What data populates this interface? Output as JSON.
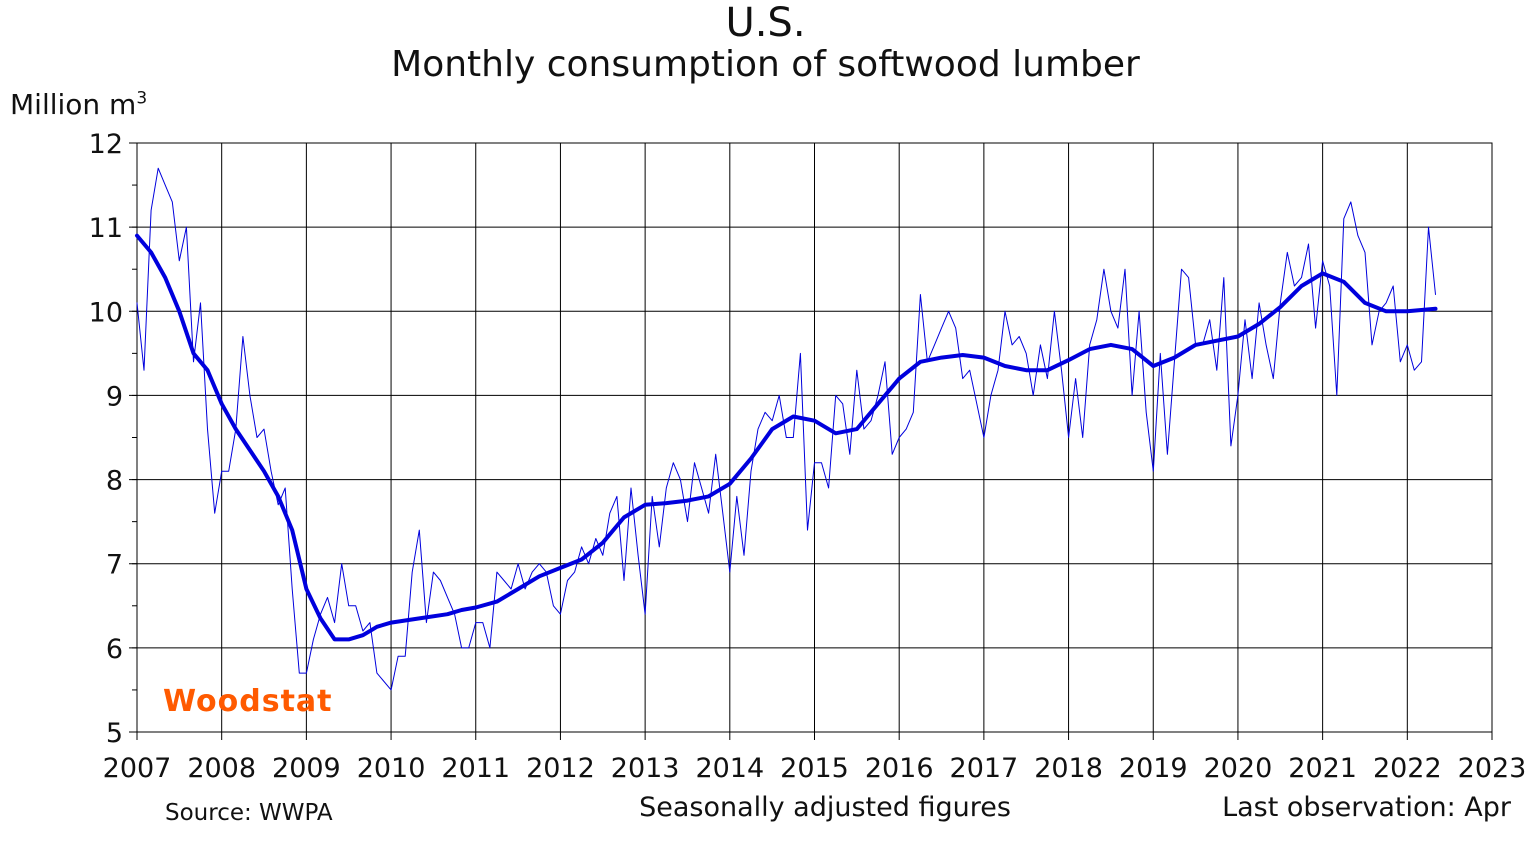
{
  "header": {
    "title": "U.S.",
    "subtitle": "Monthly consumption of softwood lumber",
    "ylabel_main": "Million m",
    "ylabel_sup": "3"
  },
  "footer": {
    "source": "Source: WWPA",
    "note": "Seasonally adjusted figures",
    "last_observation": "Last observation: Apr"
  },
  "logo": {
    "text": "Woodstat",
    "color": "#ff5a00"
  },
  "colors": {
    "series": "#0000dd",
    "grid": "#000000"
  },
  "chart_data": {
    "type": "line",
    "title": "U.S.",
    "subtitle": "Monthly consumption of softwood lumber",
    "ylabel": "Million m3",
    "xlim": [
      2007,
      2023
    ],
    "ylim": [
      5,
      12
    ],
    "grid": true,
    "x_ticks": [
      "2007",
      "2008",
      "2009",
      "2010",
      "2011",
      "2012",
      "2013",
      "2014",
      "2015",
      "2016",
      "2017",
      "2018",
      "2019",
      "2020",
      "2021",
      "2022",
      "2023"
    ],
    "y_ticks": [
      "5",
      "6",
      "7",
      "8",
      "9",
      "10",
      "11",
      "12"
    ],
    "series": [
      {
        "style": "thin",
        "points": [
          [
            2007.0,
            10.1
          ],
          [
            2007.083,
            9.3
          ],
          [
            2007.167,
            11.2
          ],
          [
            2007.25,
            11.7
          ],
          [
            2007.333,
            11.5
          ],
          [
            2007.417,
            11.3
          ],
          [
            2007.5,
            10.6
          ],
          [
            2007.583,
            11.0
          ],
          [
            2007.667,
            9.4
          ],
          [
            2007.75,
            10.1
          ],
          [
            2007.833,
            8.6
          ],
          [
            2007.917,
            7.6
          ],
          [
            2008.0,
            8.1
          ],
          [
            2008.083,
            8.1
          ],
          [
            2008.167,
            8.6
          ],
          [
            2008.25,
            9.7
          ],
          [
            2008.333,
            9.0
          ],
          [
            2008.417,
            8.5
          ],
          [
            2008.5,
            8.6
          ],
          [
            2008.583,
            8.1
          ],
          [
            2008.667,
            7.7
          ],
          [
            2008.75,
            7.9
          ],
          [
            2008.833,
            6.7
          ],
          [
            2008.917,
            5.7
          ],
          [
            2009.0,
            5.7
          ],
          [
            2009.083,
            6.1
          ],
          [
            2009.167,
            6.4
          ],
          [
            2009.25,
            6.6
          ],
          [
            2009.333,
            6.3
          ],
          [
            2009.417,
            7.0
          ],
          [
            2009.5,
            6.5
          ],
          [
            2009.583,
            6.5
          ],
          [
            2009.667,
            6.2
          ],
          [
            2009.75,
            6.3
          ],
          [
            2009.833,
            5.7
          ],
          [
            2010.0,
            5.5
          ],
          [
            2010.083,
            5.9
          ],
          [
            2010.167,
            5.9
          ],
          [
            2010.25,
            6.9
          ],
          [
            2010.333,
            7.4
          ],
          [
            2010.417,
            6.3
          ],
          [
            2010.5,
            6.9
          ],
          [
            2010.583,
            6.8
          ],
          [
            2010.667,
            6.6
          ],
          [
            2010.75,
            6.4
          ],
          [
            2010.833,
            6.0
          ],
          [
            2010.917,
            6.0
          ],
          [
            2011.0,
            6.3
          ],
          [
            2011.083,
            6.3
          ],
          [
            2011.167,
            6.0
          ],
          [
            2011.25,
            6.9
          ],
          [
            2011.333,
            6.8
          ],
          [
            2011.417,
            6.7
          ],
          [
            2011.5,
            7.0
          ],
          [
            2011.583,
            6.7
          ],
          [
            2011.667,
            6.9
          ],
          [
            2011.75,
            7.0
          ],
          [
            2011.833,
            6.9
          ],
          [
            2011.917,
            6.5
          ],
          [
            2012.0,
            6.4
          ],
          [
            2012.083,
            6.8
          ],
          [
            2012.167,
            6.9
          ],
          [
            2012.25,
            7.2
          ],
          [
            2012.333,
            7.0
          ],
          [
            2012.417,
            7.3
          ],
          [
            2012.5,
            7.1
          ],
          [
            2012.583,
            7.6
          ],
          [
            2012.667,
            7.8
          ],
          [
            2012.75,
            6.8
          ],
          [
            2012.833,
            7.9
          ],
          [
            2012.917,
            7.1
          ],
          [
            2013.0,
            6.4
          ],
          [
            2013.083,
            7.8
          ],
          [
            2013.167,
            7.2
          ],
          [
            2013.25,
            7.9
          ],
          [
            2013.333,
            8.2
          ],
          [
            2013.417,
            8.0
          ],
          [
            2013.5,
            7.5
          ],
          [
            2013.583,
            8.2
          ],
          [
            2013.667,
            7.9
          ],
          [
            2013.75,
            7.6
          ],
          [
            2013.833,
            8.3
          ],
          [
            2013.917,
            7.6
          ],
          [
            2014.0,
            6.9
          ],
          [
            2014.083,
            7.8
          ],
          [
            2014.167,
            7.1
          ],
          [
            2014.25,
            8.1
          ],
          [
            2014.333,
            8.6
          ],
          [
            2014.417,
            8.8
          ],
          [
            2014.5,
            8.7
          ],
          [
            2014.583,
            9.0
          ],
          [
            2014.667,
            8.5
          ],
          [
            2014.75,
            8.5
          ],
          [
            2014.833,
            9.5
          ],
          [
            2014.917,
            7.4
          ],
          [
            2015.0,
            8.2
          ],
          [
            2015.083,
            8.2
          ],
          [
            2015.167,
            7.9
          ],
          [
            2015.25,
            9.0
          ],
          [
            2015.333,
            8.9
          ],
          [
            2015.417,
            8.3
          ],
          [
            2015.5,
            9.3
          ],
          [
            2015.583,
            8.6
          ],
          [
            2015.667,
            8.7
          ],
          [
            2015.75,
            9.0
          ],
          [
            2015.833,
            9.4
          ],
          [
            2015.917,
            8.3
          ],
          [
            2016.0,
            8.5
          ],
          [
            2016.083,
            8.6
          ],
          [
            2016.167,
            8.8
          ],
          [
            2016.25,
            10.2
          ],
          [
            2016.333,
            9.4
          ],
          [
            2016.417,
            9.6
          ],
          [
            2016.5,
            9.8
          ],
          [
            2016.583,
            10.0
          ],
          [
            2016.667,
            9.8
          ],
          [
            2016.75,
            9.2
          ],
          [
            2016.833,
            9.3
          ],
          [
            2016.917,
            8.9
          ],
          [
            2017.0,
            8.5
          ],
          [
            2017.083,
            9.0
          ],
          [
            2017.167,
            9.3
          ],
          [
            2017.25,
            10.0
          ],
          [
            2017.333,
            9.6
          ],
          [
            2017.417,
            9.7
          ],
          [
            2017.5,
            9.5
          ],
          [
            2017.583,
            9.0
          ],
          [
            2017.667,
            9.6
          ],
          [
            2017.75,
            9.2
          ],
          [
            2017.833,
            10.0
          ],
          [
            2017.917,
            9.3
          ],
          [
            2018.0,
            8.5
          ],
          [
            2018.083,
            9.2
          ],
          [
            2018.167,
            8.5
          ],
          [
            2018.25,
            9.6
          ],
          [
            2018.333,
            9.9
          ],
          [
            2018.417,
            10.5
          ],
          [
            2018.5,
            10.0
          ],
          [
            2018.583,
            9.8
          ],
          [
            2018.667,
            10.5
          ],
          [
            2018.75,
            9.0
          ],
          [
            2018.833,
            10.0
          ],
          [
            2018.917,
            8.8
          ],
          [
            2019.0,
            8.1
          ],
          [
            2019.083,
            9.5
          ],
          [
            2019.167,
            8.3
          ],
          [
            2019.25,
            9.4
          ],
          [
            2019.333,
            10.5
          ],
          [
            2019.417,
            10.4
          ],
          [
            2019.5,
            9.6
          ],
          [
            2019.583,
            9.6
          ],
          [
            2019.667,
            9.9
          ],
          [
            2019.75,
            9.3
          ],
          [
            2019.833,
            10.4
          ],
          [
            2019.917,
            8.4
          ],
          [
            2020.0,
            9.0
          ],
          [
            2020.083,
            9.9
          ],
          [
            2020.167,
            9.2
          ],
          [
            2020.25,
            10.1
          ],
          [
            2020.333,
            9.6
          ],
          [
            2020.417,
            9.2
          ],
          [
            2020.5,
            10.1
          ],
          [
            2020.583,
            10.7
          ],
          [
            2020.667,
            10.3
          ],
          [
            2020.75,
            10.4
          ],
          [
            2020.833,
            10.8
          ],
          [
            2020.917,
            9.8
          ],
          [
            2021.0,
            10.6
          ],
          [
            2021.083,
            10.3
          ],
          [
            2021.167,
            9.0
          ],
          [
            2021.25,
            11.1
          ],
          [
            2021.333,
            11.3
          ],
          [
            2021.417,
            10.9
          ],
          [
            2021.5,
            10.7
          ],
          [
            2021.583,
            9.6
          ],
          [
            2021.667,
            10.0
          ],
          [
            2021.75,
            10.1
          ],
          [
            2021.833,
            10.3
          ],
          [
            2021.917,
            9.4
          ],
          [
            2022.0,
            9.6
          ],
          [
            2022.083,
            9.3
          ],
          [
            2022.167,
            9.4
          ],
          [
            2022.25,
            11.0
          ],
          [
            2022.333,
            10.2
          ]
        ]
      },
      {
        "style": "thick",
        "points": [
          [
            2007.0,
            10.9
          ],
          [
            2007.167,
            10.7
          ],
          [
            2007.333,
            10.4
          ],
          [
            2007.5,
            10.0
          ],
          [
            2007.667,
            9.5
          ],
          [
            2007.833,
            9.3
          ],
          [
            2008.0,
            8.9
          ],
          [
            2008.167,
            8.6
          ],
          [
            2008.333,
            8.35
          ],
          [
            2008.5,
            8.1
          ],
          [
            2008.667,
            7.8
          ],
          [
            2008.833,
            7.4
          ],
          [
            2009.0,
            6.7
          ],
          [
            2009.167,
            6.35
          ],
          [
            2009.333,
            6.1
          ],
          [
            2009.5,
            6.1
          ],
          [
            2009.667,
            6.15
          ],
          [
            2009.833,
            6.25
          ],
          [
            2010.0,
            6.3
          ],
          [
            2010.333,
            6.35
          ],
          [
            2010.667,
            6.4
          ],
          [
            2010.833,
            6.45
          ],
          [
            2011.0,
            6.48
          ],
          [
            2011.25,
            6.55
          ],
          [
            2011.5,
            6.7
          ],
          [
            2011.75,
            6.85
          ],
          [
            2012.0,
            6.95
          ],
          [
            2012.25,
            7.05
          ],
          [
            2012.5,
            7.25
          ],
          [
            2012.75,
            7.55
          ],
          [
            2013.0,
            7.7
          ],
          [
            2013.25,
            7.72
          ],
          [
            2013.5,
            7.75
          ],
          [
            2013.75,
            7.8
          ],
          [
            2014.0,
            7.95
          ],
          [
            2014.25,
            8.25
          ],
          [
            2014.5,
            8.6
          ],
          [
            2014.75,
            8.75
          ],
          [
            2015.0,
            8.7
          ],
          [
            2015.25,
            8.55
          ],
          [
            2015.5,
            8.6
          ],
          [
            2015.75,
            8.9
          ],
          [
            2016.0,
            9.2
          ],
          [
            2016.25,
            9.4
          ],
          [
            2016.5,
            9.45
          ],
          [
            2016.75,
            9.48
          ],
          [
            2017.0,
            9.45
          ],
          [
            2017.25,
            9.35
          ],
          [
            2017.5,
            9.3
          ],
          [
            2017.75,
            9.3
          ],
          [
            2018.0,
            9.42
          ],
          [
            2018.25,
            9.55
          ],
          [
            2018.5,
            9.6
          ],
          [
            2018.75,
            9.55
          ],
          [
            2019.0,
            9.35
          ],
          [
            2019.25,
            9.45
          ],
          [
            2019.5,
            9.6
          ],
          [
            2019.75,
            9.65
          ],
          [
            2020.0,
            9.7
          ],
          [
            2020.25,
            9.85
          ],
          [
            2020.5,
            10.05
          ],
          [
            2020.75,
            10.3
          ],
          [
            2021.0,
            10.45
          ],
          [
            2021.25,
            10.35
          ],
          [
            2021.5,
            10.1
          ],
          [
            2021.75,
            10.0
          ],
          [
            2022.0,
            10.0
          ],
          [
            2022.333,
            10.03
          ]
        ]
      }
    ]
  }
}
